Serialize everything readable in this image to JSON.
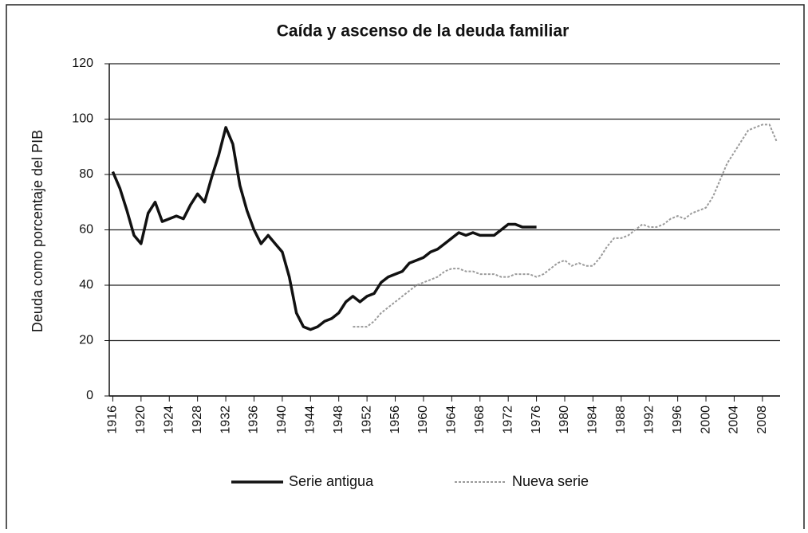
{
  "chart_data": {
    "type": "line",
    "title": "Caída y ascenso de la deuda familiar",
    "y_label": "Deuda como porcentaje del PIB",
    "x": [
      1916,
      1917,
      1918,
      1919,
      1920,
      1921,
      1922,
      1923,
      1924,
      1925,
      1926,
      1927,
      1928,
      1929,
      1930,
      1931,
      1932,
      1933,
      1934,
      1935,
      1936,
      1937,
      1938,
      1939,
      1940,
      1941,
      1942,
      1943,
      1944,
      1945,
      1946,
      1947,
      1948,
      1949,
      1950,
      1951,
      1952,
      1953,
      1954,
      1955,
      1956,
      1957,
      1958,
      1959,
      1960,
      1961,
      1962,
      1963,
      1964,
      1965,
      1966,
      1967,
      1968,
      1969,
      1970,
      1971,
      1972,
      1973,
      1974,
      1975,
      1976,
      1977,
      1978,
      1979,
      1980,
      1981,
      1982,
      1983,
      1984,
      1985,
      1986,
      1987,
      1988,
      1989,
      1990,
      1991,
      1992,
      1993,
      1994,
      1995,
      1996,
      1997,
      1998,
      1999,
      2000,
      2001,
      2002,
      2003,
      2004,
      2005,
      2006,
      2007,
      2008,
      2009,
      2010
    ],
    "series": [
      {
        "name": "Serie antigua",
        "color": "#111111",
        "dashed": false,
        "values": [
          81,
          75,
          67,
          58,
          55,
          66,
          70,
          63,
          64,
          65,
          64,
          69,
          73,
          70,
          79,
          87,
          97,
          91,
          76,
          67,
          60,
          55,
          58,
          55,
          52,
          43,
          30,
          25,
          24,
          25,
          27,
          28,
          30,
          34,
          36,
          34,
          36,
          37,
          41,
          43,
          44,
          45,
          48,
          49,
          50,
          52,
          53,
          55,
          57,
          59,
          58,
          59,
          58,
          58,
          58,
          60,
          62,
          62,
          61,
          61,
          61,
          null,
          null,
          null,
          null,
          null,
          null,
          null,
          null,
          null,
          null,
          null,
          null,
          null,
          null,
          null,
          null,
          null,
          null,
          null,
          null,
          null,
          null,
          null,
          null,
          null,
          null,
          null,
          null,
          null,
          null,
          null,
          null,
          null,
          null
        ]
      },
      {
        "name": "Nueva serie",
        "color": "#9a9a9a",
        "dashed": true,
        "values": [
          null,
          null,
          null,
          null,
          null,
          null,
          null,
          null,
          null,
          null,
          null,
          null,
          null,
          null,
          null,
          null,
          null,
          null,
          null,
          null,
          null,
          null,
          null,
          null,
          null,
          null,
          null,
          null,
          null,
          null,
          null,
          null,
          null,
          null,
          25,
          25,
          25,
          27,
          30,
          32,
          34,
          36,
          38,
          40,
          41,
          42,
          43,
          45,
          46,
          46,
          45,
          45,
          44,
          44,
          44,
          43,
          43,
          44,
          44,
          44,
          43,
          44,
          46,
          48,
          49,
          47,
          48,
          47,
          47,
          50,
          54,
          57,
          57,
          58,
          60,
          62,
          61,
          61,
          62,
          64,
          65,
          64,
          66,
          67,
          68,
          72,
          78,
          84,
          88,
          92,
          96,
          97,
          98,
          98,
          92
        ]
      }
    ],
    "xlim": [
      1915.5,
      2010.5
    ],
    "xticks": [
      1916,
      1920,
      1924,
      1928,
      1932,
      1936,
      1940,
      1944,
      1948,
      1952,
      1956,
      1960,
      1964,
      1968,
      1972,
      1976,
      1980,
      1984,
      1988,
      1992,
      1996,
      2000,
      2004,
      2008
    ],
    "ylim": [
      0,
      120
    ],
    "yticks": [
      0,
      20,
      40,
      60,
      80,
      100,
      120
    ],
    "grid": true,
    "legend": "bottom"
  }
}
